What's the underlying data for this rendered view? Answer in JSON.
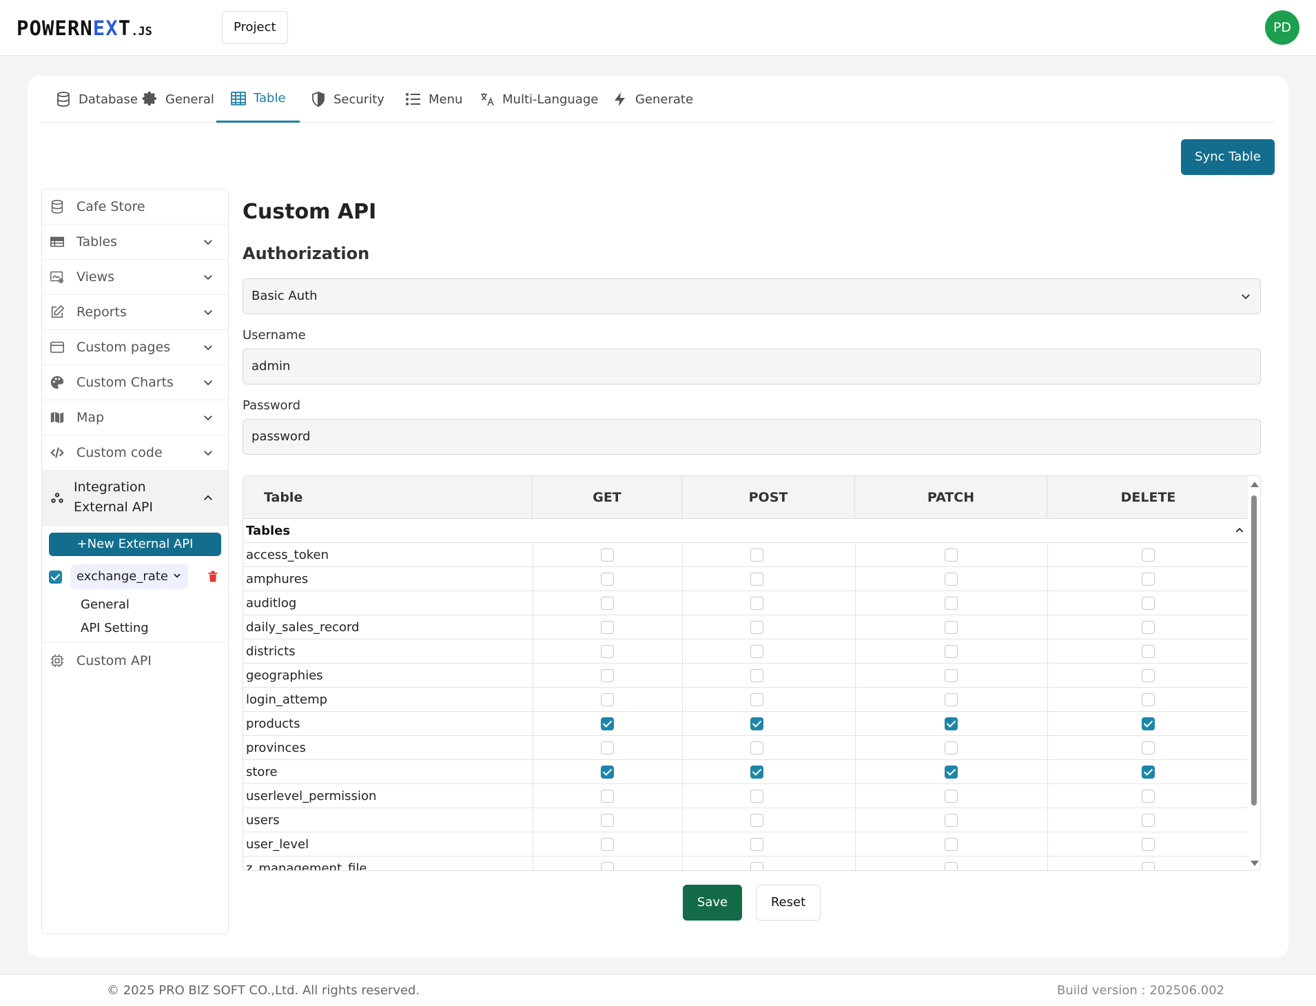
{
  "header": {
    "logo": {
      "part1": "POWERN",
      "part2": "EX",
      "part3": "T",
      "suffix": ".JS"
    },
    "project_label": "Project",
    "avatar_initials": "PD"
  },
  "tabs": [
    {
      "label": "Database",
      "icon": "database-icon"
    },
    {
      "label": "General",
      "icon": "gear-icon"
    },
    {
      "label": "Table",
      "icon": "table-icon",
      "active": true
    },
    {
      "label": "Security",
      "icon": "shield-icon"
    },
    {
      "label": "Menu",
      "icon": "list-icon"
    },
    {
      "label": "Multi-Language",
      "icon": "translate-icon"
    },
    {
      "label": "Generate",
      "icon": "bolt-icon"
    }
  ],
  "sync_label": "Sync Table",
  "sidebar": {
    "items": [
      {
        "label": "Cafe Store",
        "icon": "database-icon",
        "chevron": false
      },
      {
        "label": "Tables",
        "icon": "table-icon",
        "chevron": true
      },
      {
        "label": "Views",
        "icon": "view-icon",
        "chevron": true
      },
      {
        "label": "Reports",
        "icon": "edit-icon",
        "chevron": true
      },
      {
        "label": "Custom pages",
        "icon": "window-icon",
        "chevron": true
      },
      {
        "label": "Custom Charts",
        "icon": "palette-icon",
        "chevron": true
      },
      {
        "label": "Map",
        "icon": "map-icon",
        "chevron": true
      },
      {
        "label": "Custom code",
        "icon": "code-icon",
        "chevron": true
      }
    ],
    "integration": {
      "line1": "Integration",
      "line2": "External API",
      "icon": "integration-icon"
    },
    "new_api_label": "+New External API",
    "api_name": "exchange_rate",
    "api_sub_links": [
      "General",
      "API Setting"
    ],
    "custom_api_label": "Custom API"
  },
  "main": {
    "title": "Custom API",
    "section": "Authorization",
    "auth_type": "Basic Auth",
    "username_label": "Username",
    "username_value": "admin",
    "password_label": "Password",
    "password_value": "password"
  },
  "table": {
    "headers": [
      "Table",
      "GET",
      "POST",
      "PATCH",
      "DELETE"
    ],
    "group_label": "Tables",
    "rows": [
      {
        "name": "access_token",
        "perms": [
          false,
          false,
          false,
          false
        ]
      },
      {
        "name": "amphures",
        "perms": [
          false,
          false,
          false,
          false
        ]
      },
      {
        "name": "auditlog",
        "perms": [
          false,
          false,
          false,
          false
        ]
      },
      {
        "name": "daily_sales_record",
        "perms": [
          false,
          false,
          false,
          false
        ]
      },
      {
        "name": "districts",
        "perms": [
          false,
          false,
          false,
          false
        ]
      },
      {
        "name": "geographies",
        "perms": [
          false,
          false,
          false,
          false
        ]
      },
      {
        "name": "login_attemp",
        "perms": [
          false,
          false,
          false,
          false
        ]
      },
      {
        "name": "products",
        "perms": [
          true,
          true,
          true,
          true
        ]
      },
      {
        "name": "provinces",
        "perms": [
          false,
          false,
          false,
          false
        ]
      },
      {
        "name": "store",
        "perms": [
          true,
          true,
          true,
          true
        ]
      },
      {
        "name": "userlevel_permission",
        "perms": [
          false,
          false,
          false,
          false
        ]
      },
      {
        "name": "users",
        "perms": [
          false,
          false,
          false,
          false
        ]
      },
      {
        "name": "user_level",
        "perms": [
          false,
          false,
          false,
          false
        ]
      },
      {
        "name": "z_management_file",
        "perms": [
          false,
          false,
          false,
          false
        ]
      }
    ]
  },
  "actions": {
    "save": "Save",
    "reset": "Reset"
  },
  "footer": {
    "copyright": "© 2025 PRO BIZ SOFT CO.,Ltd. All rights reserved.",
    "build": "Build version : 202506.002"
  },
  "colors": {
    "accent": "#136d8c",
    "save": "#136b48",
    "avatar": "#1e9e4f",
    "checkbox": "#1d86a8"
  }
}
